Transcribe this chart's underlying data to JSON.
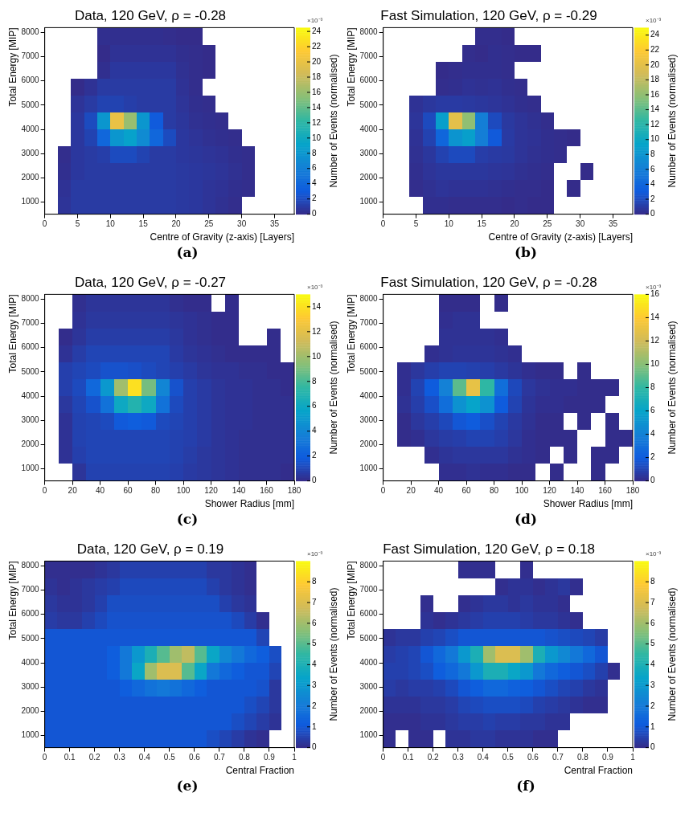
{
  "chart_data": [
    {
      "type": "heatmap",
      "title": "Data, 120 GeV, ρ = -0.28",
      "xlabel": "Centre of Gravity (z-axis) [Layers]",
      "ylabel": "Total Energy [MIP]",
      "clabel": "Number of Events (normalised)",
      "annotations": [
        "×10⁻³",
        "(a)"
      ],
      "x": [
        1,
        3,
        5,
        7,
        9,
        11,
        13,
        15,
        17,
        19,
        21,
        23,
        25,
        27,
        29,
        31,
        33,
        35,
        37
      ],
      "y": [
        7850,
        7150,
        6450,
        5750,
        5050,
        4350,
        3650,
        2950,
        2250,
        1550,
        850
      ],
      "xlim": [
        0,
        38
      ],
      "xticks": [
        0,
        5,
        10,
        15,
        20,
        25,
        30,
        35
      ],
      "ylim": [
        500,
        8200
      ],
      "yticks": [
        1000,
        2000,
        3000,
        4000,
        5000,
        6000,
        7000,
        8000
      ],
      "clim": [
        0,
        24.5
      ],
      "cticks": [
        0,
        2,
        4,
        6,
        8,
        10,
        12,
        14,
        16,
        18,
        20,
        22,
        24
      ],
      "cells": [
        [
          null,
          null,
          null,
          null,
          0.3,
          0.3,
          0.3,
          0.3,
          0.3,
          0.2,
          0.1,
          0.1,
          null,
          null,
          null,
          null,
          null,
          null,
          null
        ],
        [
          null,
          null,
          null,
          null,
          0.1,
          0.5,
          0.5,
          0.5,
          0.5,
          0.5,
          0.3,
          0.2,
          0.1,
          null,
          null,
          null,
          null,
          null,
          null
        ],
        [
          null,
          null,
          null,
          null,
          0.3,
          0.8,
          0.8,
          0.8,
          0.8,
          0.8,
          0.4,
          0.2,
          0.1,
          null,
          null,
          null,
          null,
          null,
          null
        ],
        [
          null,
          null,
          0.1,
          0.5,
          1,
          1,
          1,
          1,
          1,
          1,
          0.5,
          0.2,
          null,
          null,
          null,
          null,
          null,
          null,
          null
        ],
        [
          null,
          null,
          0.6,
          1,
          1.5,
          1.5,
          1.2,
          1,
          1,
          1,
          0.6,
          0.3,
          0.2,
          null,
          null,
          null,
          null,
          null,
          null
        ],
        [
          null,
          null,
          0.8,
          2,
          8,
          20,
          16,
          8,
          3,
          1,
          0.7,
          0.4,
          0.3,
          0.2,
          null,
          null,
          null,
          null,
          null
        ],
        [
          null,
          null,
          0.8,
          1.5,
          4,
          8,
          9,
          7,
          4,
          2,
          0.8,
          0.6,
          0.4,
          0.3,
          0.2,
          null,
          null,
          null,
          null
        ],
        [
          null,
          0.2,
          0.8,
          1,
          1.2,
          2,
          2,
          1.5,
          1,
          1,
          0.8,
          0.7,
          0.6,
          0.5,
          0.3,
          0.2,
          null,
          null,
          null
        ],
        [
          null,
          0.3,
          0.8,
          1,
          1,
          1,
          1,
          1,
          1,
          1,
          0.9,
          0.8,
          0.7,
          0.6,
          0.4,
          0.2,
          null,
          null,
          null
        ],
        [
          null,
          0.5,
          1,
          1,
          1,
          1,
          1,
          1,
          1,
          1,
          0.9,
          0.8,
          0.6,
          0.5,
          0.3,
          0.2,
          null,
          null,
          null
        ],
        [
          null,
          0.6,
          1,
          1,
          1,
          1,
          1,
          1,
          1,
          1,
          0.9,
          0.8,
          0.6,
          0.4,
          0.2,
          null,
          null,
          null,
          null
        ]
      ]
    },
    {
      "type": "heatmap",
      "title": "Fast Simulation, 120 GeV, ρ = -0.29",
      "xlabel": "Centre of Gravity (z-axis) [Layers]",
      "ylabel": "Total Energy [MIP]",
      "clabel": "Number of Events (normalised)",
      "annotations": [
        "×10⁻³",
        "(b)"
      ],
      "x": [
        1,
        3,
        5,
        7,
        9,
        11,
        13,
        15,
        17,
        19,
        21,
        23,
        25,
        27,
        29,
        31,
        33,
        35,
        37
      ],
      "y": [
        7850,
        7150,
        6450,
        5750,
        5050,
        4350,
        3650,
        2950,
        2250,
        1550,
        850
      ],
      "xlim": [
        0,
        38
      ],
      "xticks": [
        0,
        5,
        10,
        15,
        20,
        25,
        30,
        35
      ],
      "ylim": [
        500,
        8200
      ],
      "yticks": [
        1000,
        2000,
        3000,
        4000,
        5000,
        6000,
        7000,
        8000
      ],
      "clim": [
        0,
        25
      ],
      "cticks": [
        0,
        2,
        4,
        6,
        8,
        10,
        12,
        14,
        16,
        18,
        20,
        22,
        24
      ],
      "cells": [
        [
          null,
          null,
          null,
          null,
          null,
          null,
          null,
          0.2,
          0.2,
          0.1,
          null,
          null,
          null,
          null,
          null,
          null,
          null,
          null,
          null
        ],
        [
          null,
          null,
          null,
          null,
          null,
          null,
          0.2,
          0.1,
          0.3,
          0.2,
          0.1,
          0.1,
          null,
          null,
          null,
          null,
          null,
          null,
          null
        ],
        [
          null,
          null,
          null,
          null,
          0.1,
          0.2,
          0.3,
          0.3,
          0.3,
          0.2,
          null,
          null,
          null,
          null,
          null,
          null,
          null,
          null,
          null
        ],
        [
          null,
          null,
          null,
          null,
          0.2,
          0.3,
          0.5,
          0.4,
          0.5,
          0.3,
          0.2,
          null,
          null,
          null,
          null,
          null,
          null,
          null,
          null
        ],
        [
          null,
          null,
          0.5,
          0.8,
          1,
          1,
          0.9,
          0.8,
          0.7,
          0.5,
          0.3,
          0.2,
          null,
          null,
          null,
          null,
          null,
          null,
          null
        ],
        [
          null,
          null,
          0.7,
          2,
          9,
          20,
          16,
          6,
          2,
          0.9,
          0.6,
          0.4,
          0.2,
          null,
          null,
          null,
          null,
          null,
          null
        ],
        [
          null,
          null,
          0.5,
          1.5,
          4,
          8,
          9,
          6,
          3,
          1,
          0.6,
          0.5,
          0.3,
          0.2,
          0.1,
          null,
          null,
          null,
          null
        ],
        [
          null,
          null,
          0.4,
          0.8,
          1.5,
          2,
          2,
          1.2,
          1,
          0.9,
          0.6,
          0.4,
          0.3,
          0.2,
          null,
          null,
          null,
          null,
          null
        ],
        [
          null,
          null,
          0.3,
          0.6,
          0.8,
          0.8,
          0.8,
          0.8,
          0.7,
          0.6,
          0.4,
          0.3,
          0.2,
          null,
          null,
          0.1,
          null,
          null,
          null
        ],
        [
          null,
          null,
          0.2,
          0.4,
          0.6,
          0.5,
          0.5,
          0.5,
          0.4,
          0.3,
          0.2,
          0.2,
          0.1,
          null,
          0.1,
          null,
          null,
          null,
          null
        ],
        [
          null,
          null,
          null,
          0.3,
          0.3,
          0.2,
          0.2,
          0.2,
          0.2,
          0.1,
          0.2,
          0.1,
          0.1,
          null,
          null,
          null,
          null,
          null,
          null
        ]
      ]
    },
    {
      "type": "heatmap",
      "title": "Data, 120 GeV, ρ = -0.27",
      "xlabel": "Shower Radius [mm]",
      "ylabel": "Total Energy [MIP]",
      "clabel": "Number of Events (normalised)",
      "annotations": [
        "×10⁻³",
        "(c)"
      ],
      "x": [
        5,
        15,
        25,
        35,
        45,
        55,
        65,
        75,
        85,
        95,
        105,
        115,
        125,
        135,
        145,
        155,
        165,
        175
      ],
      "y": [
        7850,
        7150,
        6450,
        5750,
        5050,
        4350,
        3650,
        2950,
        2250,
        1550,
        850
      ],
      "xlim": [
        0,
        180
      ],
      "xticks": [
        0,
        20,
        40,
        60,
        80,
        100,
        120,
        140,
        160,
        180
      ],
      "ylim": [
        500,
        8200
      ],
      "yticks": [
        1000,
        2000,
        3000,
        4000,
        5000,
        6000,
        7000,
        8000
      ],
      "clim": [
        0,
        15
      ],
      "cticks": [
        0,
        2,
        4,
        6,
        8,
        10,
        12,
        14
      ],
      "cells": [
        [
          null,
          null,
          0.2,
          0.4,
          0.4,
          0.4,
          0.4,
          0.4,
          0.4,
          0.2,
          0.1,
          0.1,
          null,
          0.1,
          null,
          null,
          null,
          null
        ],
        [
          null,
          null,
          0.3,
          0.5,
          0.5,
          0.5,
          0.5,
          0.5,
          0.5,
          0.4,
          0.3,
          0.2,
          0.1,
          0.1,
          null,
          null,
          null,
          null
        ],
        [
          null,
          0.1,
          0.4,
          0.7,
          0.7,
          0.7,
          0.7,
          0.7,
          0.7,
          0.5,
          0.3,
          0.2,
          0.1,
          0.1,
          null,
          null,
          0.1,
          null
        ],
        [
          null,
          0.3,
          0.7,
          1,
          1,
          1,
          1,
          1,
          1,
          0.6,
          0.4,
          0.3,
          0.2,
          0.1,
          0.1,
          0.1,
          0.1,
          null
        ],
        [
          null,
          0.8,
          1,
          1.2,
          1.5,
          1.5,
          1.4,
          1.2,
          1,
          0.8,
          0.6,
          0.4,
          0.3,
          0.3,
          0.2,
          0.2,
          0.1,
          0.1
        ],
        [
          null,
          0.8,
          1.2,
          2.5,
          5,
          10,
          14,
          9,
          4,
          1.5,
          0.8,
          0.6,
          0.4,
          0.3,
          0.3,
          0.2,
          0.2,
          0.1
        ],
        [
          null,
          0.5,
          1,
          1.5,
          3,
          6,
          7,
          6,
          3,
          1.2,
          0.8,
          0.6,
          0.4,
          0.3,
          0.3,
          0.2,
          0.2,
          0.2
        ],
        [
          null,
          0.3,
          0.9,
          1,
          1.2,
          1.8,
          2,
          1.8,
          1.2,
          1,
          0.8,
          0.6,
          0.4,
          0.3,
          0.3,
          0.2,
          0.2,
          0.2
        ],
        [
          null,
          0.3,
          0.9,
          1,
          1,
          1,
          1,
          1,
          1,
          0.9,
          0.8,
          0.6,
          0.4,
          0.3,
          0.2,
          0.2,
          0.2,
          0.2
        ],
        [
          null,
          0.3,
          0.8,
          1,
          1,
          1,
          1,
          1,
          1,
          0.9,
          0.7,
          0.5,
          0.4,
          0.3,
          0.2,
          0.2,
          0.2,
          0.2
        ],
        [
          null,
          null,
          0.4,
          0.9,
          0.9,
          0.9,
          0.9,
          0.9,
          0.9,
          0.8,
          0.6,
          0.5,
          0.4,
          0.3,
          0.2,
          0.2,
          0.2,
          0.1
        ]
      ]
    },
    {
      "type": "heatmap",
      "title": "Fast Simulation, 120 GeV, ρ = -0.28",
      "xlabel": "Shower Radius [mm]",
      "ylabel": "Total Energy [MIP]",
      "clabel": "Number of Events (normalised)",
      "annotations": [
        "×10⁻³",
        "(d)"
      ],
      "x": [
        5,
        15,
        25,
        35,
        45,
        55,
        65,
        75,
        85,
        95,
        105,
        115,
        125,
        135,
        145,
        155,
        165,
        175
      ],
      "y": [
        7850,
        7150,
        6450,
        5750,
        5050,
        4350,
        3650,
        2950,
        2250,
        1550,
        850
      ],
      "xlim": [
        0,
        180
      ],
      "xticks": [
        0,
        20,
        40,
        60,
        80,
        100,
        120,
        140,
        160,
        180
      ],
      "ylim": [
        500,
        8200
      ],
      "yticks": [
        1000,
        2000,
        3000,
        4000,
        5000,
        6000,
        7000,
        8000
      ],
      "clim": [
        0,
        16
      ],
      "cticks": [
        0,
        2,
        4,
        6,
        8,
        10,
        12,
        14,
        16
      ],
      "cells": [
        [
          null,
          null,
          null,
          null,
          0.1,
          0.1,
          0.1,
          null,
          0.1,
          null,
          null,
          null,
          null,
          null,
          null,
          null,
          null,
          null
        ],
        [
          null,
          null,
          null,
          null,
          0.2,
          0.3,
          0.3,
          null,
          null,
          null,
          null,
          null,
          null,
          null,
          null,
          null,
          null,
          null
        ],
        [
          null,
          null,
          null,
          null,
          0.3,
          0.3,
          0.3,
          0.3,
          0.2,
          null,
          null,
          null,
          null,
          null,
          null,
          null,
          null,
          null
        ],
        [
          null,
          null,
          null,
          0.2,
          0.3,
          0.4,
          0.4,
          0.4,
          0.3,
          0.2,
          null,
          null,
          null,
          null,
          null,
          null,
          null,
          null
        ],
        [
          null,
          0.2,
          0.5,
          0.8,
          1,
          1,
          0.9,
          0.8,
          0.6,
          0.4,
          0.2,
          0.1,
          0.1,
          null,
          0.1,
          null,
          null,
          null
        ],
        [
          null,
          0.2,
          1,
          2,
          4,
          9,
          13,
          8,
          3,
          1.2,
          0.5,
          0.3,
          0.2,
          0.2,
          0.1,
          0.1,
          0.1,
          null
        ],
        [
          null,
          0.3,
          0.8,
          1.5,
          3,
          5,
          6,
          5,
          2,
          1,
          0.4,
          0.2,
          0.2,
          0.1,
          0.1,
          0.1,
          null,
          null
        ],
        [
          null,
          0.1,
          0.5,
          0.8,
          1.2,
          1.8,
          2,
          1.5,
          1,
          0.6,
          0.3,
          0.1,
          0.1,
          null,
          0.1,
          null,
          0.1,
          null
        ],
        [
          null,
          0.1,
          0.2,
          0.5,
          0.7,
          0.8,
          1,
          1,
          0.8,
          0.5,
          0.2,
          0.1,
          0.1,
          0.1,
          null,
          null,
          0.1,
          0.1
        ],
        [
          null,
          null,
          null,
          0.2,
          0.4,
          0.5,
          0.5,
          0.5,
          0.5,
          0.3,
          0.2,
          0.1,
          null,
          0.1,
          null,
          0.1,
          0.1,
          null
        ],
        [
          null,
          null,
          null,
          null,
          0.2,
          0.2,
          0.3,
          0.2,
          0.2,
          0.1,
          0.1,
          null,
          0.1,
          null,
          null,
          0.1,
          null,
          null
        ]
      ]
    },
    {
      "type": "heatmap",
      "title": "Data, 120 GeV, ρ = 0.19",
      "xlabel": "Central Fraction",
      "ylabel": "Total Energy [MIP]",
      "clabel": "Number of Events (normalised)",
      "annotations": [
        "×10⁻³",
        "(e)"
      ],
      "x": [
        0.025,
        0.075,
        0.125,
        0.175,
        0.225,
        0.275,
        0.325,
        0.375,
        0.425,
        0.475,
        0.525,
        0.575,
        0.625,
        0.675,
        0.725,
        0.775,
        0.825,
        0.875,
        0.925,
        0.975
      ],
      "y": [
        7850,
        7150,
        6450,
        5750,
        5050,
        4350,
        3650,
        2950,
        2250,
        1550,
        850
      ],
      "xlim": [
        0,
        1
      ],
      "xticks": [
        0,
        0.1,
        0.2,
        0.3,
        0.4,
        0.5,
        0.6,
        0.7,
        0.8,
        0.9,
        1
      ],
      "ylim": [
        500,
        8200
      ],
      "yticks": [
        1000,
        2000,
        3000,
        4000,
        5000,
        6000,
        7000,
        8000
      ],
      "clim": [
        0,
        9
      ],
      "cticks": [
        0,
        1,
        2,
        3,
        4,
        5,
        6,
        7,
        8
      ],
      "cells": [
        [
          0.1,
          0.1,
          0.1,
          0.1,
          0.2,
          0.3,
          0.5,
          0.5,
          0.5,
          0.5,
          0.5,
          0.5,
          0.5,
          0.3,
          0.3,
          0.2,
          0.1,
          null,
          null,
          null
        ],
        [
          0.2,
          0.1,
          0.2,
          0.3,
          0.4,
          0.5,
          0.7,
          0.7,
          0.7,
          0.7,
          0.7,
          0.7,
          0.7,
          0.5,
          0.3,
          0.2,
          0.1,
          null,
          null,
          null
        ],
        [
          0.3,
          0.2,
          0.2,
          0.3,
          0.5,
          0.8,
          0.8,
          0.8,
          0.8,
          0.8,
          0.8,
          0.8,
          0.8,
          0.8,
          0.5,
          0.3,
          0.2,
          null,
          null,
          null
        ],
        [
          0.4,
          0.3,
          0.3,
          0.5,
          0.7,
          0.9,
          0.9,
          0.9,
          0.9,
          0.9,
          0.9,
          0.9,
          0.9,
          0.9,
          0.9,
          0.7,
          0.4,
          0.1,
          null,
          null
        ],
        [
          1,
          1,
          1,
          1,
          1,
          1,
          1,
          1,
          1,
          1,
          1,
          1,
          1,
          1,
          1,
          1,
          1,
          0.6,
          null,
          null
        ],
        [
          1,
          1,
          1,
          1,
          1,
          1.2,
          2,
          3,
          4,
          5,
          6,
          6.5,
          5,
          3.5,
          2.5,
          2,
          1.5,
          1.2,
          0.8,
          null
        ],
        [
          1,
          1,
          1,
          1,
          1,
          1.2,
          2,
          3.5,
          6,
          7,
          7,
          5,
          3.5,
          2,
          1.5,
          1.2,
          1,
          1,
          0.6,
          null
        ],
        [
          1,
          1,
          1,
          1,
          1,
          1,
          1.2,
          1.5,
          1.8,
          2,
          1.8,
          1.5,
          1.2,
          1,
          1,
          1,
          1,
          0.9,
          0.3,
          null
        ],
        [
          1,
          1,
          1,
          1,
          1,
          1,
          1,
          1,
          1,
          1,
          1,
          1,
          1,
          1,
          1,
          1,
          0.8,
          0.6,
          0.3,
          null
        ],
        [
          1,
          1,
          1,
          1,
          1,
          1,
          1,
          1,
          1,
          1,
          1,
          1,
          1,
          1,
          1,
          0.8,
          0.6,
          0.4,
          0.2,
          null
        ],
        [
          1,
          1,
          1,
          1,
          1,
          1,
          1,
          1,
          1,
          1,
          1,
          1,
          1,
          0.8,
          0.6,
          0.4,
          0.2,
          0.1,
          null,
          null
        ]
      ]
    },
    {
      "type": "heatmap",
      "title": "Fast Simulation, 120 GeV, ρ = 0.18",
      "xlabel": "Central Fraction",
      "ylabel": "Total Energy [MIP]",
      "clabel": "Number of Events (normalised)",
      "annotations": [
        "×10⁻³",
        "(f)"
      ],
      "x": [
        0.025,
        0.075,
        0.125,
        0.175,
        0.225,
        0.275,
        0.325,
        0.375,
        0.425,
        0.475,
        0.525,
        0.575,
        0.625,
        0.675,
        0.725,
        0.775,
        0.825,
        0.875,
        0.925,
        0.975
      ],
      "y": [
        7850,
        7150,
        6450,
        5750,
        5050,
        4350,
        3650,
        2950,
        2250,
        1550,
        850
      ],
      "xlim": [
        0,
        1
      ],
      "xticks": [
        0,
        0.1,
        0.2,
        0.3,
        0.4,
        0.5,
        0.6,
        0.7,
        0.8,
        0.9,
        1
      ],
      "ylim": [
        500,
        8200
      ],
      "yticks": [
        1000,
        2000,
        3000,
        4000,
        5000,
        6000,
        7000,
        8000
      ],
      "clim": [
        0,
        9
      ],
      "cticks": [
        0,
        1,
        2,
        3,
        4,
        5,
        6,
        7,
        8
      ],
      "cells": [
        [
          null,
          null,
          null,
          null,
          null,
          null,
          0.1,
          0.1,
          0.1,
          null,
          null,
          0.1,
          null,
          null,
          null,
          null,
          null,
          null,
          null,
          null
        ],
        [
          null,
          null,
          null,
          null,
          null,
          null,
          null,
          null,
          null,
          0.1,
          0.2,
          0.2,
          0.1,
          0.2,
          0.3,
          0.1,
          null,
          null,
          null,
          null
        ],
        [
          null,
          null,
          null,
          0.1,
          null,
          null,
          0.1,
          0.2,
          0.3,
          0.3,
          0.2,
          0.3,
          0.2,
          0.2,
          0.1,
          null,
          null,
          null,
          null,
          null
        ],
        [
          null,
          null,
          null,
          0.2,
          0.1,
          0.2,
          0.3,
          0.4,
          0.5,
          0.5,
          0.5,
          0.4,
          0.3,
          0.3,
          0.2,
          0.1,
          null,
          null,
          null,
          null
        ],
        [
          0.2,
          0.3,
          0.3,
          0.5,
          0.6,
          0.8,
          1,
          1,
          1,
          1,
          1,
          1,
          1,
          0.9,
          0.8,
          0.7,
          0.6,
          0.4,
          null,
          null
        ],
        [
          0.4,
          0.5,
          0.6,
          1,
          1.5,
          2,
          3,
          4,
          6,
          7,
          7,
          6,
          4,
          3,
          2.5,
          2,
          1.5,
          1,
          null,
          null
        ],
        [
          0.5,
          0.5,
          0.6,
          0.8,
          1.2,
          1.5,
          2,
          3,
          4,
          4,
          3.5,
          3,
          2,
          1.5,
          1.2,
          1,
          0.8,
          0.5,
          0.1,
          null
        ],
        [
          0.4,
          0.3,
          0.4,
          0.4,
          0.5,
          0.7,
          1,
          1.2,
          1.5,
          1.5,
          1.3,
          1.2,
          1,
          0.8,
          0.6,
          0.5,
          0.3,
          0.2,
          null,
          null
        ],
        [
          0.2,
          0.2,
          0.2,
          0.3,
          0.3,
          0.4,
          0.6,
          0.7,
          0.8,
          0.8,
          0.8,
          0.7,
          0.5,
          0.4,
          0.3,
          0.2,
          0.1,
          0.1,
          null,
          null
        ],
        [
          0.1,
          0.1,
          0.1,
          0.2,
          0.2,
          0.3,
          0.4,
          0.4,
          0.5,
          0.4,
          0.4,
          0.3,
          0.3,
          0.2,
          0.2,
          null,
          null,
          null,
          null,
          null
        ],
        [
          0.1,
          null,
          0.1,
          0.1,
          null,
          0.2,
          0.2,
          0.3,
          0.3,
          0.2,
          0.2,
          0.2,
          0.1,
          0.1,
          null,
          null,
          null,
          null,
          null,
          null
        ]
      ]
    }
  ]
}
